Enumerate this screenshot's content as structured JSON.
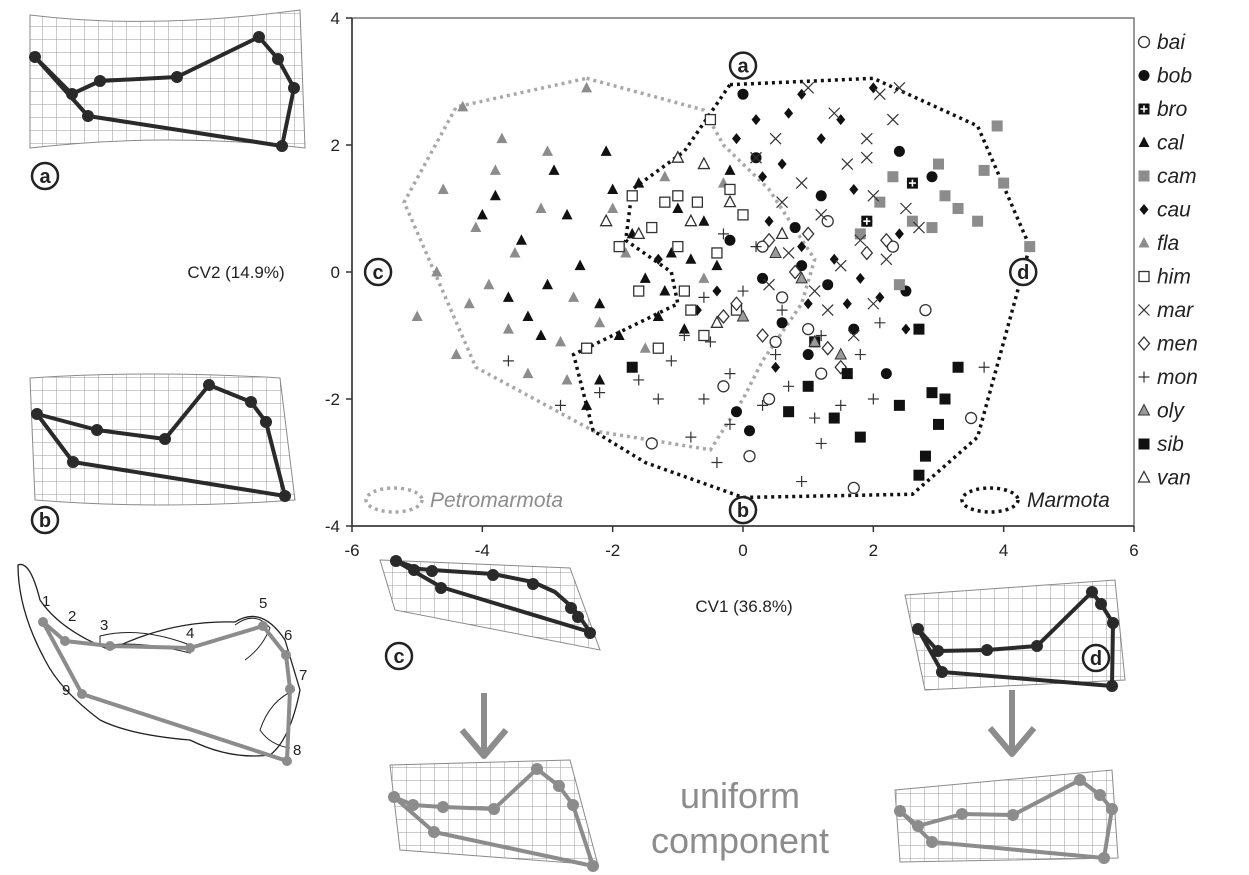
{
  "chart_data": {
    "type": "scatter",
    "xlabel": "CV1 (36.8%)",
    "ylabel": "CV2 (14.9%)",
    "xlim": [
      -6,
      6
    ],
    "ylim": [
      -4,
      4
    ],
    "xticks": [
      "-6",
      "-4",
      "-2",
      "0",
      "2",
      "4",
      "6"
    ],
    "yticks": [
      "4",
      "2",
      "0",
      "-2",
      "-4"
    ],
    "grid": false,
    "legend_position": "right",
    "series": [
      {
        "name": "bai",
        "marker": "open-circle",
        "color": "#333333",
        "points": [
          [
            -1.4,
            -2.7
          ],
          [
            0.3,
            0.4
          ],
          [
            0.6,
            -0.4
          ],
          [
            1.2,
            -1.6
          ],
          [
            0.1,
            -2.9
          ],
          [
            1.7,
            -3.4
          ],
          [
            3.5,
            -2.3
          ],
          [
            2.3,
            0.4
          ],
          [
            -0.3,
            -1.8
          ],
          [
            0.5,
            -1.1
          ],
          [
            1.0,
            -0.9
          ],
          [
            2.8,
            -0.6
          ],
          [
            0.4,
            -2.0
          ],
          [
            1.3,
            0.8
          ]
        ]
      },
      {
        "name": "bob",
        "marker": "filled-circle",
        "color": "#111111",
        "points": [
          [
            0.2,
            1.8
          ],
          [
            0.8,
            0.7
          ],
          [
            1.2,
            1.2
          ],
          [
            2.9,
            1.5
          ],
          [
            2.4,
            1.9
          ],
          [
            1.9,
            0.8
          ],
          [
            0.6,
            -0.8
          ],
          [
            1.3,
            -0.2
          ],
          [
            -0.1,
            -2.2
          ],
          [
            0.1,
            -2.5
          ],
          [
            1.7,
            -0.9
          ],
          [
            2.2,
            -1.6
          ],
          [
            0.9,
            0.1
          ],
          [
            0.0,
            2.8
          ],
          [
            -0.2,
            0.5
          ],
          [
            1.0,
            -1.3
          ],
          [
            2.5,
            -0.3
          ],
          [
            0.3,
            -0.1
          ]
        ]
      },
      {
        "name": "bro",
        "marker": "plus-square",
        "color": "#111111",
        "points": [
          [
            2.6,
            1.4
          ],
          [
            1.1,
            -1.1
          ],
          [
            1.9,
            0.8
          ]
        ]
      },
      {
        "name": "cal",
        "marker": "filled-triangle",
        "color": "#111111",
        "points": [
          [
            -3.8,
            1.2
          ],
          [
            -3.4,
            0.5
          ],
          [
            -3.0,
            -0.2
          ],
          [
            -2.7,
            0.9
          ],
          [
            -2.5,
            0.1
          ],
          [
            -2.2,
            -0.5
          ],
          [
            -2.0,
            1.3
          ],
          [
            -1.7,
            0.6
          ],
          [
            -1.5,
            -0.1
          ],
          [
            -1.3,
            -0.7
          ],
          [
            -1.1,
            0.3
          ],
          [
            -0.9,
            -0.9
          ],
          [
            -0.6,
            0.8
          ],
          [
            -0.4,
            0.1
          ],
          [
            -0.2,
            1.6
          ],
          [
            -2.4,
            -2.1
          ],
          [
            -2.2,
            -1.7
          ],
          [
            -3.1,
            -1.0
          ],
          [
            -3.6,
            -0.4
          ],
          [
            -4.0,
            0.9
          ],
          [
            -1.9,
            -1.0
          ],
          [
            -1.0,
            1.0
          ],
          [
            -2.9,
            1.6
          ],
          [
            -0.8,
            0.2
          ],
          [
            -3.3,
            -0.7
          ],
          [
            -2.1,
            1.9
          ],
          [
            -1.6,
            1.4
          ],
          [
            -1.2,
            -0.3
          ]
        ]
      },
      {
        "name": "cam",
        "marker": "filled-square",
        "color": "#8c8c8c",
        "points": [
          [
            2.3,
            1.5
          ],
          [
            3.0,
            1.7
          ],
          [
            3.3,
            1.0
          ],
          [
            3.7,
            1.6
          ],
          [
            4.4,
            0.4
          ],
          [
            4.0,
            1.4
          ],
          [
            3.9,
            2.3
          ],
          [
            2.9,
            0.7
          ],
          [
            3.6,
            0.8
          ],
          [
            2.4,
            -0.2
          ],
          [
            3.1,
            1.2
          ],
          [
            2.1,
            1.1
          ],
          [
            1.8,
            0.6
          ],
          [
            2.6,
            0.8
          ]
        ]
      },
      {
        "name": "cau",
        "marker": "filled-diamond",
        "color": "#111111",
        "points": [
          [
            0.9,
            2.8
          ],
          [
            1.5,
            2.4
          ],
          [
            0.6,
            1.7
          ],
          [
            1.2,
            2.1
          ],
          [
            2.0,
            2.9
          ],
          [
            1.7,
            1.3
          ],
          [
            0.3,
            1.5
          ],
          [
            -0.1,
            2.1
          ],
          [
            0.9,
            0.4
          ],
          [
            1.4,
            0.2
          ],
          [
            2.1,
            -0.4
          ],
          [
            1.0,
            -0.5
          ],
          [
            0.4,
            0.8
          ],
          [
            -0.4,
            -0.3
          ],
          [
            -1.3,
            0.2
          ],
          [
            1.3,
            -1.2
          ],
          [
            2.5,
            -0.9
          ],
          [
            0.7,
            2.5
          ],
          [
            1.8,
            -0.1
          ],
          [
            -0.7,
            -0.6
          ],
          [
            0.5,
            -1.5
          ],
          [
            1.6,
            -0.5
          ],
          [
            2.4,
            0.6
          ],
          [
            0.2,
            2.4
          ]
        ]
      },
      {
        "name": "fla",
        "marker": "filled-triangle",
        "color": "#8c8c8c",
        "points": [
          [
            -4.3,
            2.6
          ],
          [
            -3.8,
            1.6
          ],
          [
            -4.1,
            0.7
          ],
          [
            -4.7,
            0.0
          ],
          [
            -5.0,
            -0.7
          ],
          [
            -4.4,
            -1.3
          ],
          [
            -3.6,
            -0.9
          ],
          [
            -3.5,
            0.3
          ],
          [
            -3.1,
            1.0
          ],
          [
            -2.4,
            2.9
          ],
          [
            -2.8,
            -1.1
          ],
          [
            -2.6,
            -0.4
          ],
          [
            -3.9,
            -0.2
          ],
          [
            -4.6,
            1.3
          ],
          [
            -3.3,
            -1.6
          ],
          [
            -2.2,
            -0.8
          ],
          [
            -1.8,
            0.3
          ],
          [
            -1.5,
            -1.2
          ],
          [
            -0.3,
            1.4
          ],
          [
            -3.0,
            1.9
          ],
          [
            -2.0,
            1.0
          ],
          [
            -3.7,
            2.1
          ],
          [
            -1.2,
            1.5
          ],
          [
            -0.6,
            -0.1
          ],
          [
            -4.2,
            -0.5
          ],
          [
            -2.7,
            -1.7
          ]
        ]
      },
      {
        "name": "him",
        "marker": "open-square",
        "color": "#333333",
        "points": [
          [
            -0.5,
            2.4
          ],
          [
            -1.7,
            1.2
          ],
          [
            -1.4,
            0.7
          ],
          [
            -1.0,
            0.4
          ],
          [
            -0.7,
            1.1
          ],
          [
            -0.4,
            0.3
          ],
          [
            -1.6,
            -0.3
          ],
          [
            -0.8,
            -0.6
          ],
          [
            -0.6,
            -1.0
          ],
          [
            -1.3,
            -1.2
          ],
          [
            -0.2,
            1.3
          ],
          [
            -2.4,
            -1.2
          ],
          [
            -1.0,
            1.2
          ],
          [
            0.0,
            0.9
          ],
          [
            -1.2,
            1.1
          ],
          [
            -0.9,
            -0.3
          ],
          [
            -0.1,
            -0.6
          ],
          [
            -1.9,
            0.4
          ]
        ]
      },
      {
        "name": "mar",
        "marker": "cross",
        "color": "#333333",
        "points": [
          [
            1.0,
            2.9
          ],
          [
            1.4,
            2.5
          ],
          [
            1.9,
            2.1
          ],
          [
            2.3,
            2.4
          ],
          [
            2.1,
            2.8
          ],
          [
            1.6,
            1.7
          ],
          [
            1.2,
            0.9
          ],
          [
            0.9,
            1.4
          ],
          [
            0.5,
            2.1
          ],
          [
            0.2,
            1.8
          ],
          [
            2.0,
            1.2
          ],
          [
            2.5,
            1.0
          ],
          [
            1.8,
            0.5
          ],
          [
            1.5,
            0.1
          ],
          [
            1.1,
            -0.3
          ],
          [
            0.7,
            0.3
          ],
          [
            0.4,
            -0.2
          ],
          [
            2.2,
            0.2
          ],
          [
            2.7,
            0.7
          ],
          [
            1.3,
            -0.6
          ],
          [
            1.7,
            -1.0
          ],
          [
            2.0,
            -0.5
          ],
          [
            1.9,
            1.8
          ],
          [
            2.4,
            2.9
          ],
          [
            0.6,
            1.1
          ]
        ]
      },
      {
        "name": "men",
        "marker": "open-diamond",
        "color": "#333333",
        "points": [
          [
            0.4,
            0.5
          ],
          [
            1.3,
            -1.2
          ],
          [
            0.8,
            0.0
          ],
          [
            1.9,
            0.3
          ],
          [
            -0.3,
            -0.7
          ],
          [
            1.5,
            -1.5
          ],
          [
            1.0,
            0.6
          ],
          [
            0.3,
            -1.0
          ],
          [
            2.2,
            0.5
          ],
          [
            -0.1,
            -0.5
          ]
        ]
      },
      {
        "name": "mon",
        "marker": "plus",
        "color": "#333333",
        "points": [
          [
            -3.6,
            -1.4
          ],
          [
            -2.8,
            -2.1
          ],
          [
            -2.2,
            -1.9
          ],
          [
            -1.6,
            -1.7
          ],
          [
            -1.1,
            -1.4
          ],
          [
            -0.6,
            -2.0
          ],
          [
            -0.2,
            -2.4
          ],
          [
            0.3,
            -2.1
          ],
          [
            0.7,
            -1.8
          ],
          [
            1.1,
            -2.3
          ],
          [
            1.5,
            -2.1
          ],
          [
            1.8,
            -1.3
          ],
          [
            1.2,
            -1.0
          ],
          [
            0.6,
            -0.6
          ],
          [
            -0.2,
            -1.6
          ],
          [
            -0.8,
            -2.6
          ],
          [
            -1.3,
            -2.0
          ],
          [
            -0.5,
            -1.1
          ],
          [
            0.0,
            -0.3
          ],
          [
            0.9,
            -3.3
          ],
          [
            1.2,
            -2.7
          ],
          [
            -0.4,
            -3.0
          ],
          [
            0.5,
            -1.3
          ],
          [
            -0.9,
            -1.0
          ],
          [
            2.0,
            -2.0
          ],
          [
            3.7,
            -1.5
          ],
          [
            2.1,
            -0.8
          ],
          [
            -0.6,
            -0.4
          ],
          [
            0.2,
            0.4
          ],
          [
            -0.3,
            0.6
          ]
        ]
      },
      {
        "name": "oly",
        "marker": "gray-triangle",
        "color": "#9a9a9a",
        "points": [
          [
            0.0,
            -0.7
          ],
          [
            1.1,
            -1.1
          ],
          [
            0.5,
            0.3
          ],
          [
            0.9,
            -0.1
          ],
          [
            1.5,
            -1.3
          ]
        ]
      },
      {
        "name": "sib",
        "marker": "filled-square",
        "color": "#111111",
        "points": [
          [
            3.3,
            -1.5
          ],
          [
            3.1,
            -2.0
          ],
          [
            2.7,
            -3.2
          ],
          [
            2.8,
            -2.9
          ],
          [
            2.9,
            -1.9
          ],
          [
            1.4,
            -2.3
          ],
          [
            1.8,
            -2.6
          ],
          [
            2.7,
            -0.9
          ],
          [
            1.0,
            -1.8
          ],
          [
            1.6,
            -1.6
          ],
          [
            0.7,
            -2.2
          ],
          [
            2.4,
            -2.1
          ],
          [
            3.0,
            -2.4
          ],
          [
            -1.7,
            -1.5
          ]
        ]
      },
      {
        "name": "van",
        "marker": "open-triangle",
        "color": "#333333",
        "points": [
          [
            -1.0,
            1.8
          ],
          [
            -1.6,
            0.6
          ],
          [
            -0.8,
            0.8
          ],
          [
            -0.2,
            1.1
          ],
          [
            0.6,
            0.6
          ],
          [
            -0.4,
            -0.8
          ],
          [
            -2.1,
            0.8
          ],
          [
            -0.6,
            1.7
          ]
        ]
      }
    ],
    "hulls": [
      {
        "name": "Petromarmota",
        "color": "#a8a8a8",
        "points": [
          [
            -2.4,
            3.05
          ],
          [
            -0.6,
            2.55
          ],
          [
            -0.3,
            2.0
          ],
          [
            0.4,
            1.3
          ],
          [
            1.1,
            0.2
          ],
          [
            0.9,
            -0.5
          ],
          [
            0.3,
            -1.4
          ],
          [
            0.0,
            -2.0
          ],
          [
            -0.5,
            -2.8
          ],
          [
            -2.3,
            -2.5
          ],
          [
            -4.1,
            -1.5
          ],
          [
            -5.2,
            1.1
          ],
          [
            -4.4,
            2.6
          ]
        ]
      },
      {
        "name": "Marmota",
        "color": "#111111",
        "points": [
          [
            -0.2,
            2.95
          ],
          [
            2.0,
            3.05
          ],
          [
            3.6,
            2.3
          ],
          [
            4.4,
            0.4
          ],
          [
            3.6,
            -2.6
          ],
          [
            2.6,
            -3.5
          ],
          [
            0.0,
            -3.55
          ],
          [
            -1.5,
            -3.0
          ],
          [
            -2.3,
            -2.5
          ],
          [
            -2.6,
            -1.3
          ],
          [
            -2.0,
            -1.0
          ],
          [
            -1.0,
            -0.5
          ],
          [
            -1.1,
            0.0
          ],
          [
            -1.8,
            0.5
          ],
          [
            -1.7,
            1.3
          ],
          [
            -0.9,
            1.9
          ],
          [
            -0.5,
            2.5
          ]
        ]
      }
    ],
    "extreme_labels": [
      {
        "label": "a",
        "x": 0.0,
        "y": 3.25
      },
      {
        "label": "b",
        "x": 0.0,
        "y": -3.75
      },
      {
        "label": "c",
        "x": -5.6,
        "y": 0.0
      },
      {
        "label": "d",
        "x": 4.3,
        "y": 0.0
      }
    ],
    "annotation": "uniform component"
  },
  "landmark_diagram": {
    "numbers": [
      "1",
      "2",
      "3",
      "4",
      "5",
      "6",
      "7",
      "8",
      "9"
    ]
  }
}
